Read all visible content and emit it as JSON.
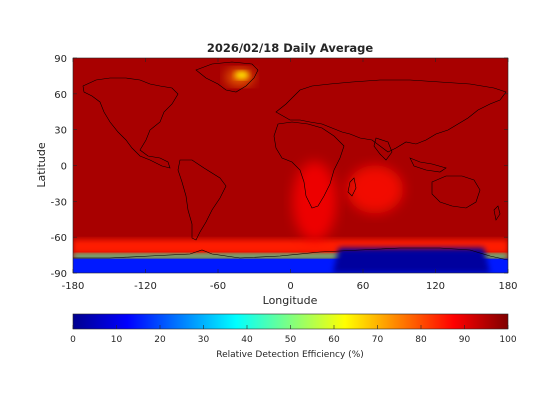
{
  "chart_data": {
    "type": "heatmap",
    "title": "2026/02/18 Daily Average",
    "xlabel": "Longitude",
    "ylabel": "Latitude",
    "xlim": [
      -180,
      180
    ],
    "ylim": [
      -90,
      90
    ],
    "x_ticks": [
      -180,
      -120,
      -60,
      0,
      60,
      120,
      180
    ],
    "x_tick_labels": [
      "-180",
      "-120",
      "-60",
      "0",
      "60",
      "120",
      "180"
    ],
    "y_ticks": [
      90,
      60,
      30,
      0,
      -30,
      -60,
      -90
    ],
    "y_tick_labels": [
      "90",
      "60",
      "30",
      "0",
      "-30",
      "-60",
      "-90"
    ],
    "colorbar": {
      "label": "Relative Detection Efficiency (%)",
      "range": [
        0,
        100
      ],
      "ticks": [
        0,
        10,
        20,
        30,
        40,
        50,
        60,
        70,
        80,
        90,
        100
      ],
      "tick_labels": [
        "0",
        "10",
        "20",
        "30",
        "40",
        "50",
        "60",
        "70",
        "80",
        "90",
        "100"
      ],
      "colormap": "jet"
    },
    "background_value": 96,
    "features": [
      {
        "region": "Greenland ice sheet",
        "lon": -42,
        "lat": 74,
        "value": 75
      },
      {
        "region": "Antarctic coast",
        "lon": 0,
        "lat": -70,
        "value": 45
      },
      {
        "region": "Antarctic interior",
        "lon": 0,
        "lat": -85,
        "value": 3
      },
      {
        "region": "South Atlantic / Africa band",
        "lon": 20,
        "lat": -30,
        "value": 88
      },
      {
        "region": "Indian Ocean",
        "lon": 70,
        "lat": -20,
        "value": 86
      }
    ],
    "basemap": "coastlines"
  },
  "colors": {
    "background_field": "#a50000",
    "axis": "#262626"
  }
}
